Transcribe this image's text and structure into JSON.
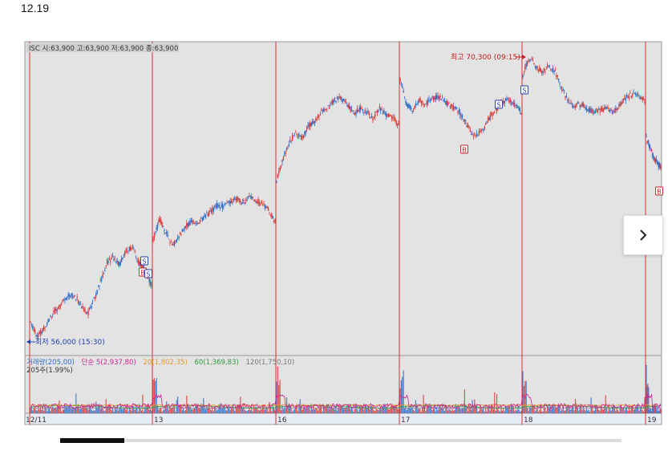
{
  "header": {
    "date": "12.19"
  },
  "chart_data": {
    "type": "candlestick",
    "price_legend": "ISC 시:63,900 고:63,900 저:63,900 종:63,900",
    "max_annotation": "최고 70,300 (09:15)",
    "min_annotation": "최저 56,000 (15:30)",
    "max_price": 70300,
    "min_price": 56000,
    "volume_legend": {
      "volume": "거래량(205,00)",
      "ma5": "단순 5(2,937,80)",
      "ma20": "20(1,802,35)",
      "ma60": "60(1,369,83)",
      "ma120": "120(1,750,10)",
      "shares": "205주(1.99%)"
    },
    "x_ticks": [
      "12/11",
      "13",
      "16",
      "17",
      "18",
      "19"
    ],
    "markers": [
      "S",
      "B",
      "S",
      "B",
      "S",
      "S",
      "B"
    ],
    "day_segments": [
      [
        57000,
        56300,
        56600,
        57200,
        57600,
        58000,
        58400,
        58300,
        57800,
        57400,
        58200,
        59000,
        60000,
        60300,
        59900,
        60600,
        60800,
        60000,
        59700,
        58800
      ],
      [
        61200,
        62200,
        61500,
        60800,
        61300,
        61800,
        62100,
        62000,
        62300,
        62600,
        62900,
        62800,
        63100,
        63200,
        63000,
        63300,
        63100,
        63000,
        62600,
        62100
      ],
      [
        64200,
        65200,
        66100,
        66500,
        66300,
        66900,
        67200,
        67600,
        67800,
        68200,
        68300,
        68000,
        67500,
        67800,
        67600,
        67300,
        67800,
        67500,
        67300,
        67000
      ],
      [
        69200,
        68000,
        67700,
        68200,
        68000,
        68300,
        68400,
        68100,
        67900,
        67700,
        67300,
        66600,
        66400,
        66700,
        67300,
        67700,
        68100,
        68200,
        68000,
        67600
      ],
      [
        69500,
        70300,
        70000,
        69600,
        69900,
        69700,
        68800,
        68200,
        67900,
        68000,
        67800,
        67600,
        67700,
        67800,
        67600,
        67900,
        68300,
        68500,
        68400,
        68200
      ],
      [
        66300,
        65300,
        64800
      ]
    ]
  },
  "colors": {
    "up": "#d63b3b",
    "down": "#2f6fc9",
    "day_divider": "#d23030",
    "ma5": "#cc2299",
    "ma20": "#e89a20",
    "ma60": "#2e9e3e",
    "ma120": "#8a8a8a"
  },
  "nav": {
    "next_icon": "chevron-right-icon"
  }
}
